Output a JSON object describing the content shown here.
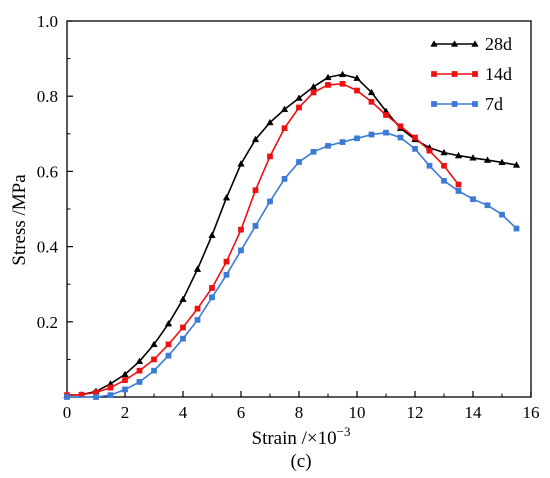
{
  "chart_data": {
    "type": "line",
    "xlabel": "Strain /×10",
    "xlabel_sup": "−3",
    "ylabel": "Stress /MPa",
    "caption": "(c)",
    "xlim": [
      0,
      16
    ],
    "ylim": [
      0,
      1.0
    ],
    "x_ticks": [
      "0",
      "2",
      "4",
      "6",
      "8",
      "10",
      "12",
      "14",
      "16"
    ],
    "y_ticks": [
      "0.2",
      "0.4",
      "0.6",
      "0.8",
      "1.0"
    ],
    "grid": false,
    "legend_position": "top-right",
    "series": [
      {
        "name": "28d",
        "color": "#000000",
        "marker": "triangle",
        "points": [
          [
            0,
            0.005
          ],
          [
            0.5,
            0.006
          ],
          [
            1,
            0.015
          ],
          [
            1.5,
            0.035
          ],
          [
            2,
            0.06
          ],
          [
            2.5,
            0.095
          ],
          [
            3,
            0.14
          ],
          [
            3.5,
            0.195
          ],
          [
            4,
            0.26
          ],
          [
            4.5,
            0.34
          ],
          [
            5,
            0.43
          ],
          [
            5.5,
            0.53
          ],
          [
            6,
            0.62
          ],
          [
            6.5,
            0.685
          ],
          [
            7,
            0.73
          ],
          [
            7.5,
            0.765
          ],
          [
            8,
            0.795
          ],
          [
            8.5,
            0.825
          ],
          [
            9,
            0.85
          ],
          [
            9.5,
            0.858
          ],
          [
            10,
            0.848
          ],
          [
            10.5,
            0.81
          ],
          [
            11,
            0.76
          ],
          [
            11.5,
            0.715
          ],
          [
            12,
            0.685
          ],
          [
            12.5,
            0.663
          ],
          [
            13,
            0.65
          ],
          [
            13.5,
            0.642
          ],
          [
            14,
            0.636
          ],
          [
            14.5,
            0.63
          ],
          [
            15,
            0.624
          ],
          [
            15.5,
            0.617
          ]
        ]
      },
      {
        "name": "14d",
        "color": "#ee1111",
        "marker": "square",
        "points": [
          [
            0,
            0.005
          ],
          [
            0.5,
            0.006
          ],
          [
            1,
            0.012
          ],
          [
            1.5,
            0.025
          ],
          [
            2,
            0.045
          ],
          [
            2.5,
            0.07
          ],
          [
            3,
            0.1
          ],
          [
            3.5,
            0.14
          ],
          [
            4,
            0.185
          ],
          [
            4.5,
            0.235
          ],
          [
            5,
            0.29
          ],
          [
            5.5,
            0.36
          ],
          [
            6,
            0.445
          ],
          [
            6.5,
            0.55
          ],
          [
            7,
            0.64
          ],
          [
            7.5,
            0.715
          ],
          [
            8,
            0.77
          ],
          [
            8.5,
            0.81
          ],
          [
            9,
            0.83
          ],
          [
            9.5,
            0.833
          ],
          [
            10,
            0.815
          ],
          [
            10.5,
            0.785
          ],
          [
            11,
            0.75
          ],
          [
            11.5,
            0.72
          ],
          [
            12,
            0.69
          ],
          [
            12.5,
            0.655
          ],
          [
            13,
            0.615
          ],
          [
            13.5,
            0.565
          ]
        ]
      },
      {
        "name": "7d",
        "color": "#3a7bd5",
        "marker": "square",
        "points": [
          [
            0,
            0.0
          ],
          [
            1,
            0.0
          ],
          [
            1.5,
            0.005
          ],
          [
            2,
            0.02
          ],
          [
            2.5,
            0.04
          ],
          [
            3,
            0.07
          ],
          [
            3.5,
            0.11
          ],
          [
            4,
            0.155
          ],
          [
            4.5,
            0.205
          ],
          [
            5,
            0.265
          ],
          [
            5.5,
            0.325
          ],
          [
            6,
            0.39
          ],
          [
            6.5,
            0.455
          ],
          [
            7,
            0.52
          ],
          [
            7.5,
            0.58
          ],
          [
            8,
            0.625
          ],
          [
            8.5,
            0.652
          ],
          [
            9,
            0.668
          ],
          [
            9.5,
            0.678
          ],
          [
            10,
            0.688
          ],
          [
            10.5,
            0.698
          ],
          [
            11,
            0.703
          ],
          [
            11.5,
            0.69
          ],
          [
            12,
            0.66
          ],
          [
            12.5,
            0.615
          ],
          [
            13,
            0.575
          ],
          [
            13.5,
            0.548
          ],
          [
            14,
            0.526
          ],
          [
            14.5,
            0.51
          ],
          [
            15,
            0.485
          ],
          [
            15.5,
            0.448
          ]
        ]
      }
    ]
  }
}
